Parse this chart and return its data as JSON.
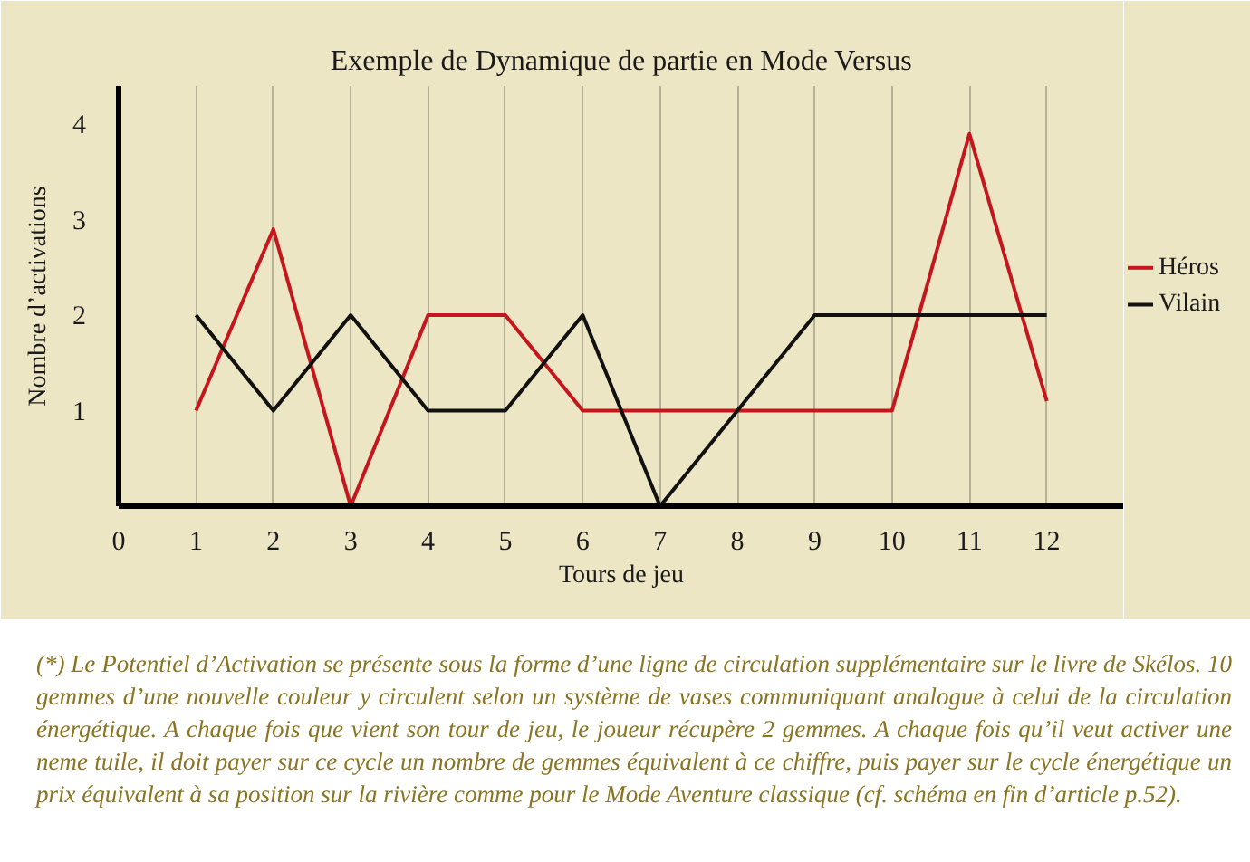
{
  "chart_data": {
    "type": "line",
    "title": "Exemple de Dynamique de partie en Mode Versus",
    "xlabel": "Tours de jeu",
    "ylabel": "Nombre d’activations",
    "x": [
      1,
      2,
      3,
      4,
      5,
      6,
      7,
      8,
      9,
      10,
      11,
      12
    ],
    "series": [
      {
        "name": "Héros",
        "color": "#c4161c",
        "values": [
          1,
          2.9,
          0,
          2,
          2,
          1,
          1,
          1,
          1,
          1,
          3.9,
          1.1
        ]
      },
      {
        "name": "Vilain",
        "color": "#111111",
        "values": [
          2,
          1,
          2,
          1,
          1,
          2,
          0,
          1,
          2,
          2,
          2,
          2
        ]
      }
    ],
    "xlim": [
      0,
      13
    ],
    "ylim": [
      0,
      4.4
    ],
    "xticks": [
      0,
      1,
      2,
      3,
      4,
      5,
      6,
      7,
      8,
      9,
      10,
      11,
      12
    ],
    "yticks": [
      1,
      2,
      3,
      4
    ],
    "grid": "x",
    "legend": "right",
    "annotations": [
      "(*) Le Potentiel d’Activation se présente sous la forme d’une ligne de circulation supplémentaire sur le livre de Skélos. 10 gemmes d’une nouvelle couleur y circulent selon un système de vases communiquant analogue à celui de la circulation énergétique. A chaque fois que vient son tour de jeu, le joueur récupère 2 gemmes. A chaque fois qu’il veut activer une neme tuile, il doit payer sur ce cycle un nombre de gemmes équivalent à ce chiffre, puis payer sur le cycle énergétique un prix équivalent à sa position sur la rivière comme pour le Mode Aventure classique (cf. schéma en fin d’article p.52)."
    ]
  }
}
